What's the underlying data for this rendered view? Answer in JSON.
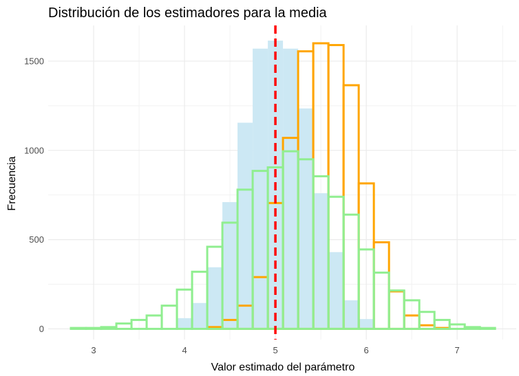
{
  "chart_data": {
    "type": "bar",
    "title": "Distribución de los estimadores para la media",
    "xlabel": "Valor estimado del parámetro",
    "ylabel": "Frecuencia",
    "xlim": [
      2.5,
      7.65
    ],
    "ylim": [
      -60,
      1700
    ],
    "x_ticks": [
      "3",
      "4",
      "5",
      "6",
      "7"
    ],
    "y_ticks": [
      "0",
      "500",
      "1000",
      "1500"
    ],
    "grid": true,
    "bin_width": 0.1667,
    "reference_line": {
      "x": 5.0,
      "style": "dashed",
      "color": "#ff0000"
    },
    "series": [
      {
        "fill": "#cce8f4",
        "outline": "none",
        "bins": [
          {
            "x": 4.0,
            "y": 60
          },
          {
            "x": 4.1667,
            "y": 145
          },
          {
            "x": 4.3333,
            "y": 345
          },
          {
            "x": 4.5,
            "y": 710
          },
          {
            "x": 4.6667,
            "y": 1155
          },
          {
            "x": 4.8333,
            "y": 1570
          },
          {
            "x": 5.0,
            "y": 1615
          },
          {
            "x": 5.1667,
            "y": 1570
          },
          {
            "x": 5.3333,
            "y": 1235
          },
          {
            "x": 5.5,
            "y": 760
          },
          {
            "x": 5.6667,
            "y": 430
          },
          {
            "x": 5.8333,
            "y": 160
          },
          {
            "x": 6.0,
            "y": 55
          }
        ]
      },
      {
        "fill": "none",
        "outline": "#ffa500",
        "bins": [
          {
            "x": 4.3333,
            "y": 10
          },
          {
            "x": 4.5,
            "y": 50
          },
          {
            "x": 4.6667,
            "y": 130
          },
          {
            "x": 4.8333,
            "y": 290
          },
          {
            "x": 5.0,
            "y": 705
          },
          {
            "x": 5.1667,
            "y": 1070
          },
          {
            "x": 5.3333,
            "y": 1555
          },
          {
            "x": 5.5,
            "y": 1600
          },
          {
            "x": 5.6667,
            "y": 1590
          },
          {
            "x": 5.8333,
            "y": 1365
          },
          {
            "x": 6.0,
            "y": 815
          },
          {
            "x": 6.1667,
            "y": 485
          },
          {
            "x": 6.3333,
            "y": 210
          },
          {
            "x": 6.5,
            "y": 75
          },
          {
            "x": 6.6667,
            "y": 20
          },
          {
            "x": 6.8333,
            "y": 5
          }
        ]
      },
      {
        "fill": "none",
        "outline": "#90ee90",
        "bins": [
          {
            "x": 2.8333,
            "y": 5
          },
          {
            "x": 3.0,
            "y": 5
          },
          {
            "x": 3.1667,
            "y": 10
          },
          {
            "x": 3.3333,
            "y": 30
          },
          {
            "x": 3.5,
            "y": 50
          },
          {
            "x": 3.6667,
            "y": 75
          },
          {
            "x": 3.8333,
            "y": 130
          },
          {
            "x": 4.0,
            "y": 220
          },
          {
            "x": 4.1667,
            "y": 320
          },
          {
            "x": 4.3333,
            "y": 460
          },
          {
            "x": 4.5,
            "y": 595
          },
          {
            "x": 4.6667,
            "y": 780
          },
          {
            "x": 4.8333,
            "y": 885
          },
          {
            "x": 5.0,
            "y": 905
          },
          {
            "x": 5.1667,
            "y": 995
          },
          {
            "x": 5.3333,
            "y": 950
          },
          {
            "x": 5.5,
            "y": 855
          },
          {
            "x": 5.6667,
            "y": 740
          },
          {
            "x": 5.8333,
            "y": 640
          },
          {
            "x": 6.0,
            "y": 445
          },
          {
            "x": 6.1667,
            "y": 315
          },
          {
            "x": 6.3333,
            "y": 215
          },
          {
            "x": 6.5,
            "y": 160
          },
          {
            "x": 6.6667,
            "y": 95
          },
          {
            "x": 6.8333,
            "y": 50
          },
          {
            "x": 7.0,
            "y": 25
          },
          {
            "x": 7.1667,
            "y": 10
          },
          {
            "x": 7.3333,
            "y": 5
          }
        ]
      }
    ]
  }
}
